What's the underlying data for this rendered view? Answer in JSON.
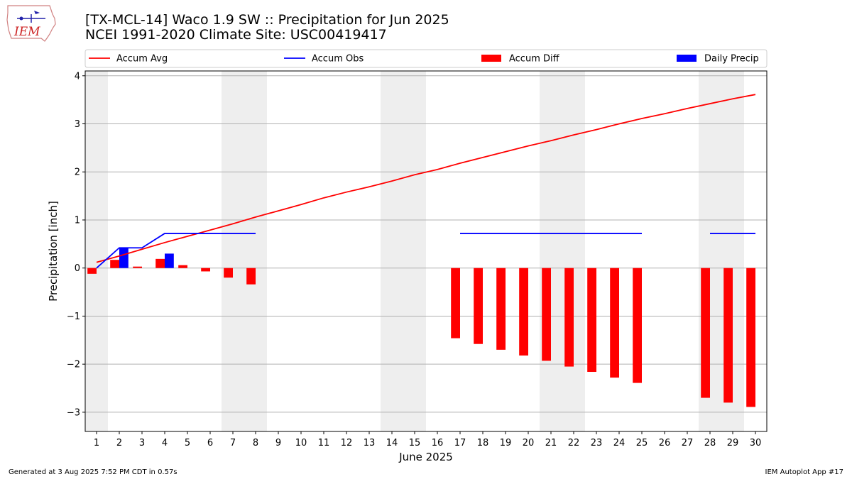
{
  "header": {
    "title_line1": "[TX-MCL-14] Waco 1.9 SW :: Precipitation for Jun 2025",
    "title_line2": "NCEI 1991-2020 Climate Site: USC00419417"
  },
  "logo": {
    "text": "IEM",
    "icon": "iem-iowa-logo"
  },
  "footer": {
    "generated": "Generated at 3 Aug 2025 7:52 PM CDT in 0.57s",
    "app": "IEM Autoplot App #17"
  },
  "colors": {
    "avg": "#ff0000",
    "obs": "#0000ff",
    "diff": "#ff0000",
    "daily": "#0000ff",
    "weekend": "#eeeeee",
    "grid": "#b0b0b0"
  },
  "chart_data": {
    "type": "bar",
    "xlabel": "June 2025",
    "ylabel": "Precipitation [inch]",
    "ylim": [
      -3.4,
      4.1
    ],
    "xlim": [
      0.5,
      30.5
    ],
    "yticks": [
      -3,
      -2,
      -1,
      0,
      1,
      2,
      3,
      4
    ],
    "ytick_labels": [
      "−3",
      "−2",
      "−1",
      "0",
      "1",
      "2",
      "3",
      "4"
    ],
    "x": [
      1,
      2,
      3,
      4,
      5,
      6,
      7,
      8,
      9,
      10,
      11,
      12,
      13,
      14,
      15,
      16,
      17,
      18,
      19,
      20,
      21,
      22,
      23,
      24,
      25,
      26,
      27,
      28,
      29,
      30
    ],
    "grid": "horizontal",
    "legend_position": "top",
    "shaded_days": [
      [
        0.5,
        1.5
      ],
      [
        6.5,
        8.5
      ],
      [
        13.5,
        15.5
      ],
      [
        20.5,
        22.5
      ],
      [
        27.5,
        29.5
      ]
    ],
    "series": [
      {
        "name": "Accum Avg",
        "type": "line",
        "values": [
          0.12,
          0.25,
          0.39,
          0.53,
          0.66,
          0.79,
          0.92,
          1.06,
          1.19,
          1.32,
          1.46,
          1.58,
          1.69,
          1.81,
          1.94,
          2.05,
          2.18,
          2.3,
          2.42,
          2.54,
          2.65,
          2.77,
          2.88,
          3.0,
          3.11,
          3.21,
          3.32,
          3.42,
          3.52,
          3.61
        ]
      },
      {
        "name": "Accum Obs",
        "type": "line",
        "values": [
          0,
          0.42,
          0.42,
          0.72,
          0.72,
          0.72,
          0.72,
          0.72,
          null,
          null,
          null,
          null,
          null,
          null,
          null,
          null,
          0.72,
          0.72,
          0.72,
          0.72,
          0.72,
          0.72,
          0.72,
          0.72,
          0.72,
          null,
          null,
          0.72,
          0.72,
          0.72
        ]
      },
      {
        "name": "Accum Diff",
        "type": "bar",
        "values": [
          -0.12,
          0.17,
          0.03,
          0.19,
          0.06,
          -0.07,
          -0.2,
          -0.34,
          null,
          null,
          null,
          null,
          null,
          null,
          null,
          null,
          -1.46,
          -1.58,
          -1.7,
          -1.82,
          -1.93,
          -2.05,
          -2.16,
          -2.28,
          -2.39,
          null,
          null,
          -2.7,
          -2.8,
          -2.89
        ]
      },
      {
        "name": "Daily Precip",
        "type": "bar",
        "values": [
          0,
          0.42,
          0,
          0.3,
          0,
          0,
          0,
          0,
          null,
          null,
          null,
          null,
          null,
          null,
          null,
          null,
          0,
          0,
          0,
          0,
          0,
          0,
          0,
          0,
          0,
          null,
          null,
          0,
          0,
          0
        ]
      }
    ]
  }
}
